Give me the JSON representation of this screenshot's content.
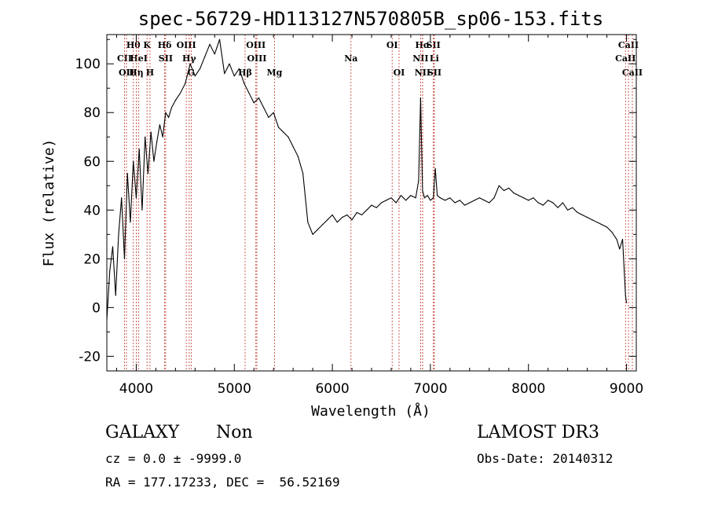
{
  "chart_data": {
    "type": "line",
    "title": "spec-56729-HD113127N570805B_sp06-153.fits",
    "xlabel": "Wavelength (Å)",
    "ylabel": "Flux (relative)",
    "xlim": [
      3700,
      9100
    ],
    "ylim": [
      -26,
      112
    ],
    "x_ticks": [
      4000,
      5000,
      6000,
      7000,
      8000,
      9000
    ],
    "y_ticks": [
      -20,
      0,
      20,
      40,
      60,
      80,
      100
    ],
    "series": [
      {
        "x": [
          3700,
          3730,
          3760,
          3790,
          3820,
          3850,
          3880,
          3910,
          3940,
          3970,
          4000,
          4030,
          4060,
          4090,
          4120,
          4150,
          4180,
          4210,
          4240,
          4270,
          4300,
          4330,
          4360,
          4400,
          4450,
          4500,
          4550,
          4600,
          4650,
          4700,
          4750,
          4800,
          4850,
          4900,
          4950,
          5000,
          5050,
          5100,
          5150,
          5200,
          5250,
          5300,
          5350,
          5400,
          5450,
          5500,
          5550,
          5600,
          5650,
          5700,
          5750,
          5800,
          5850,
          5900,
          5950,
          6000,
          6050,
          6100,
          6150,
          6200,
          6250,
          6300,
          6350,
          6400,
          6450,
          6500,
          6550,
          6600,
          6650,
          6700,
          6750,
          6800,
          6850,
          6880,
          6900,
          6920,
          6940,
          6970,
          7000,
          7030,
          7050,
          7070,
          7100,
          7150,
          7200,
          7250,
          7300,
          7350,
          7400,
          7450,
          7500,
          7550,
          7600,
          7650,
          7700,
          7750,
          7800,
          7850,
          7900,
          7950,
          8000,
          8050,
          8100,
          8150,
          8200,
          8250,
          8300,
          8350,
          8400,
          8450,
          8500,
          8550,
          8600,
          8650,
          8700,
          8750,
          8800,
          8850,
          8900,
          8930,
          8960,
          8990,
          9000
        ],
        "y": [
          -5,
          15,
          25,
          5,
          30,
          45,
          20,
          55,
          35,
          60,
          45,
          65,
          40,
          70,
          55,
          72,
          60,
          68,
          75,
          70,
          80,
          78,
          82,
          85,
          88,
          92,
          100,
          95,
          98,
          103,
          108,
          104,
          110,
          96,
          100,
          95,
          98,
          92,
          88,
          84,
          86,
          82,
          78,
          80,
          74,
          72,
          70,
          66,
          62,
          55,
          35,
          30,
          32,
          34,
          36,
          38,
          35,
          37,
          38,
          36,
          39,
          38,
          40,
          42,
          41,
          43,
          44,
          45,
          43,
          46,
          44,
          46,
          45,
          52,
          86,
          48,
          45,
          46,
          44,
          45,
          57,
          46,
          45,
          44,
          45,
          43,
          44,
          42,
          43,
          44,
          45,
          44,
          43,
          45,
          50,
          48,
          49,
          47,
          46,
          45,
          44,
          45,
          43,
          42,
          44,
          43,
          41,
          43,
          40,
          41,
          39,
          38,
          37,
          36,
          35,
          34,
          33,
          31,
          28,
          24,
          28,
          5,
          2
        ]
      }
    ],
    "line_markers": [
      {
        "label": "CII",
        "x": 3880,
        "row": 1
      },
      {
        "label": "OII",
        "x": 3900,
        "row": 2
      },
      {
        "label": "Hθ",
        "x": 3970,
        "row": 0
      },
      {
        "label": "HeI",
        "x": 4026,
        "row": 1
      },
      {
        "label": "Hη",
        "x": 4000,
        "row": 2
      },
      {
        "label": "K",
        "x": 4110,
        "row": 0
      },
      {
        "label": "H",
        "x": 4140,
        "row": 2
      },
      {
        "label": "Hδ",
        "x": 4290,
        "row": 0
      },
      {
        "label": "SII",
        "x": 4300,
        "row": 1
      },
      {
        "label": "OIII",
        "x": 4510,
        "row": 0
      },
      {
        "label": "Hγ",
        "x": 4540,
        "row": 1
      },
      {
        "label": "G",
        "x": 4560,
        "row": 2
      },
      {
        "label": "Hβ",
        "x": 5110,
        "row": 2
      },
      {
        "label": "OIII",
        "x": 5220,
        "row": 0
      },
      {
        "label": "OIII",
        "x": 5230,
        "row": 1
      },
      {
        "label": "Mg",
        "x": 5410,
        "row": 2
      },
      {
        "label": "Na",
        "x": 6190,
        "row": 1
      },
      {
        "label": "OI",
        "x": 6610,
        "row": 0
      },
      {
        "label": "OI",
        "x": 6680,
        "row": 2
      },
      {
        "label": "Hα",
        "x": 6920,
        "row": 0
      },
      {
        "label": "NII",
        "x": 6900,
        "row": 1
      },
      {
        "label": "NII",
        "x": 6920,
        "row": 2
      },
      {
        "label": "SII",
        "x": 7030,
        "row": 0
      },
      {
        "label": "Li",
        "x": 7040,
        "row": 1
      },
      {
        "label": "SII",
        "x": 7040,
        "row": 2
      },
      {
        "label": "CaII",
        "x": 9020,
        "row": 0
      },
      {
        "label": "CaII",
        "x": 8990,
        "row": 1
      },
      {
        "label": "CaII",
        "x": 9060,
        "row": 2
      }
    ],
    "grid": false,
    "legend": "none"
  },
  "info": {
    "object_class": "GALAXY",
    "subclass": "Non",
    "survey": "LAMOST DR3",
    "redshift_line": "cz = 0.0 ± -9999.0",
    "obs_date_line": "Obs-Date: 20140312",
    "coords_line": "RA = 177.17233, DEC =  56.52169"
  },
  "colors": {
    "spectrum": "#000000",
    "marker_line": "#c0392b",
    "background": "#ffffff"
  }
}
